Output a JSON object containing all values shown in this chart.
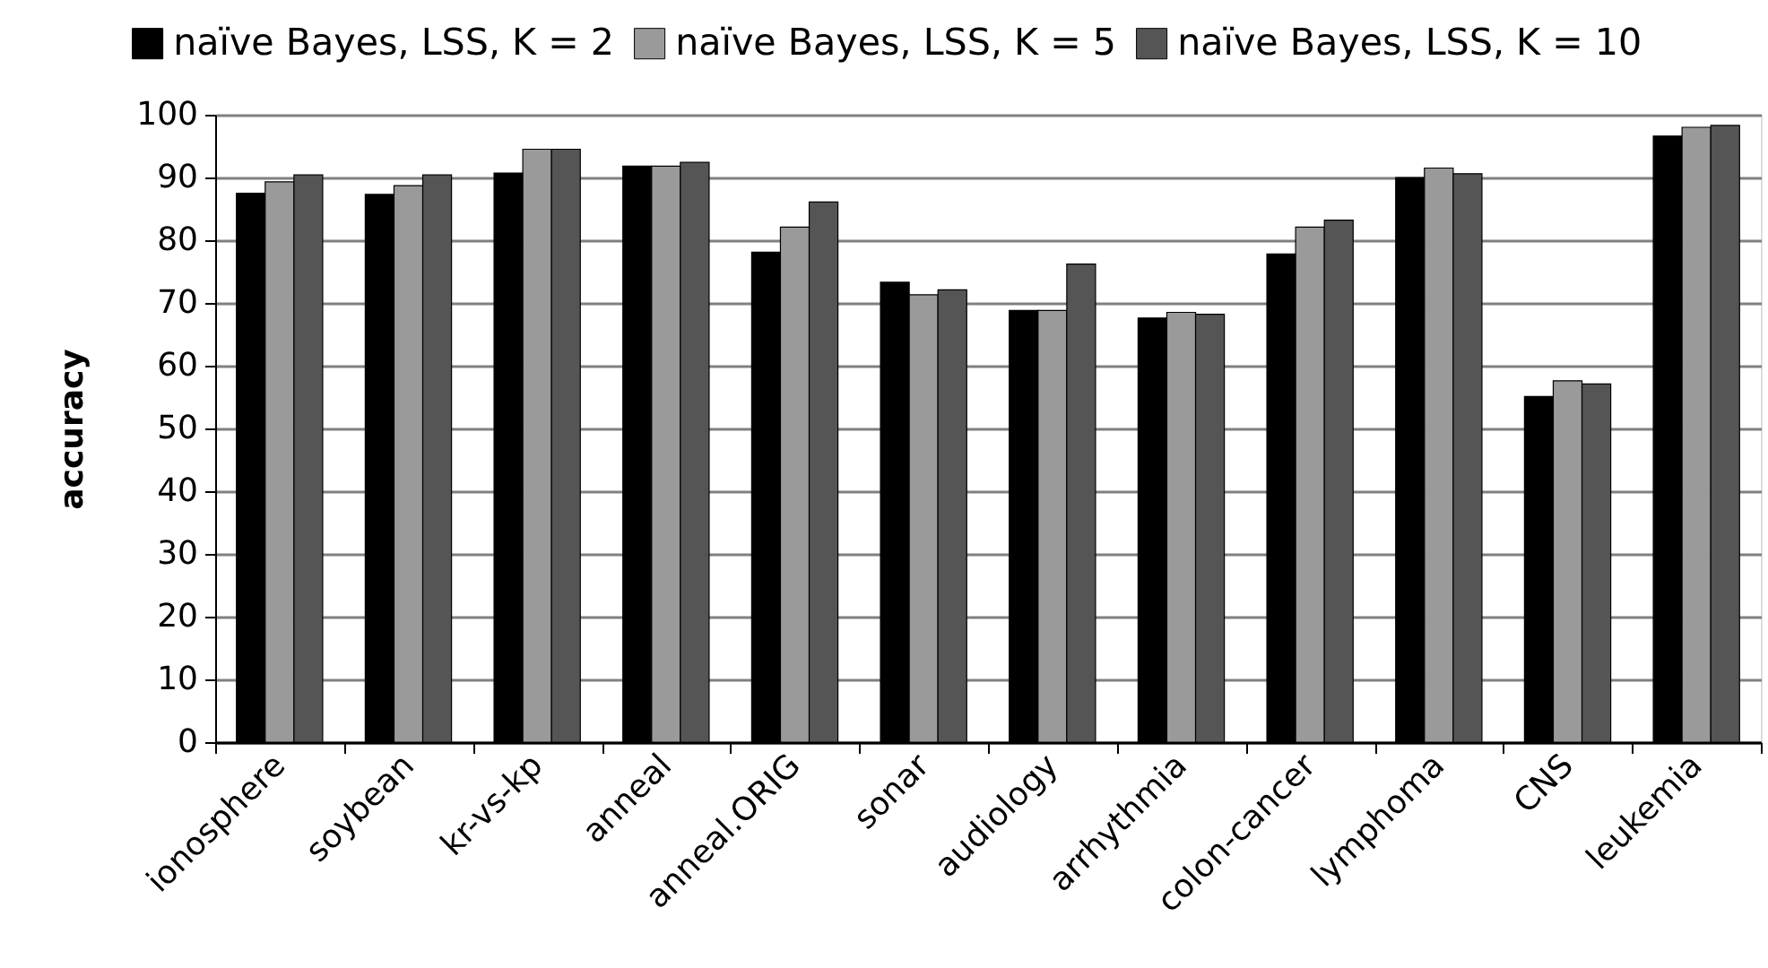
{
  "chart_data": {
    "type": "bar",
    "ylabel": "accuracy",
    "categories": [
      "ionosphere",
      "soybean",
      "kr-vs-kp",
      "anneal",
      "anneal.ORIG",
      "sonar",
      "audiology",
      "arrhythmia",
      "colon-cancer",
      "lymphoma",
      "CNS",
      "leukemia"
    ],
    "series": [
      {
        "name": "naïve Bayes, LSS, K = 2",
        "color": "#000000",
        "values": [
          87.5,
          87.3,
          90.7,
          91.8,
          78.1,
          73.3,
          68.8,
          67.6,
          77.8,
          90.0,
          55.1,
          96.6
        ]
      },
      {
        "name": "naïve Bayes, LSS, K = 5",
        "color": "#9a9a9a",
        "values": [
          89.3,
          88.7,
          94.5,
          91.8,
          82.1,
          71.3,
          68.8,
          68.5,
          82.1,
          91.5,
          57.6,
          98.0
        ]
      },
      {
        "name": "naïve Bayes, LSS, K = 10",
        "color": "#555555",
        "values": [
          90.4,
          90.4,
          94.5,
          92.4,
          86.1,
          72.1,
          76.2,
          68.2,
          83.2,
          90.6,
          57.1,
          98.3
        ]
      }
    ],
    "ylim": [
      0,
      100
    ],
    "yticks": [
      0,
      10,
      20,
      30,
      40,
      50,
      60,
      70,
      80,
      90,
      100
    ],
    "grid": "y",
    "legend": "top"
  }
}
